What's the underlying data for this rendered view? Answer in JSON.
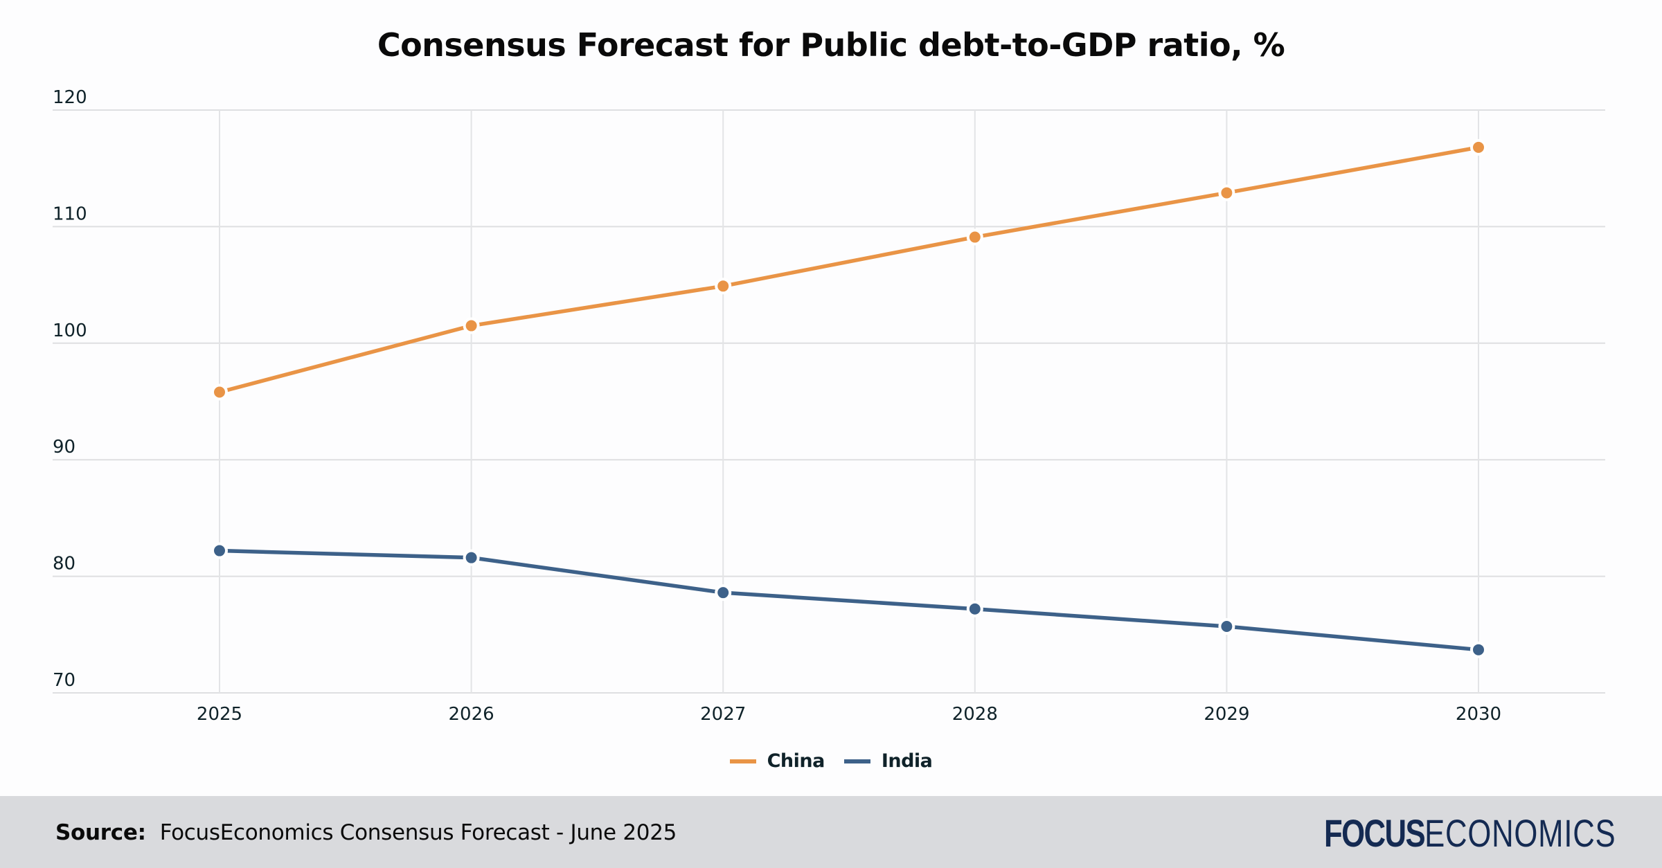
{
  "chart_data": {
    "type": "line",
    "title": "Consensus Forecast for Public debt-to-GDP ratio, %",
    "xlabel": "",
    "ylabel": "",
    "categories": [
      "2025",
      "2026",
      "2027",
      "2028",
      "2029",
      "2030"
    ],
    "series": [
      {
        "name": "China",
        "color": "#e99446",
        "values": [
          95.8,
          101.5,
          104.9,
          109.1,
          112.9,
          116.8
        ]
      },
      {
        "name": "India",
        "color": "#3d6189",
        "values": [
          82.2,
          81.6,
          78.6,
          77.2,
          75.7,
          73.7
        ]
      }
    ],
    "ylim": [
      70,
      120
    ],
    "yticks": [
      "70",
      "80",
      "90",
      "100",
      "110",
      "120"
    ],
    "grid": true,
    "legend": "bottom-center"
  },
  "footer": {
    "source_label": "Source:",
    "source_text": "FocusEconomics Consensus Forecast - June 2025",
    "logo_bold": "FOCUS",
    "logo_light": "ECONOMICS"
  }
}
